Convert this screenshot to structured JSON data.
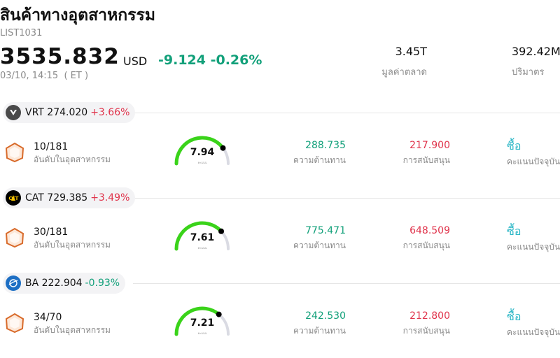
{
  "header": {
    "title": "สินค้าทางอุตสาหกรรม",
    "code": "LIST1031",
    "price": "3535.832",
    "currency": "USD",
    "change": "-9.124",
    "change_pct": "-0.26%",
    "time": "03/10, 14:15  ( ET )",
    "market_cap_value": "3.45T",
    "market_cap_label": "มูลค่าตลาด",
    "volume_value": "392.42M",
    "volume_label": "ปริมาตร"
  },
  "colors": {
    "up": "#e0334b",
    "down": "#12a07a",
    "buy": "#2fb8c7",
    "gauge": "#3ad31a"
  },
  "stocks": [
    {
      "ticker": "VRT",
      "price": "274.020",
      "pct": "+3.66%",
      "direction": "up",
      "logo": "vertiv-logo-icon",
      "rank": "10/181",
      "rank_label": "อันดับในอุตสาหกรรม",
      "score": "7.94",
      "score_value": 7.94,
      "score_label": "คะแนน",
      "resistance": "288.735",
      "resistance_label": "ความต้านทาน",
      "support": "217.900",
      "support_label": "การสนับสนุน",
      "rating": "ซื้อ",
      "rating_label": "คะแนนปัจจุบัน"
    },
    {
      "ticker": "CAT",
      "price": "729.385",
      "pct": "+3.49%",
      "direction": "up",
      "logo": "cat-logo-icon",
      "rank": "30/181",
      "rank_label": "อันดับในอุตสาหกรรม",
      "score": "7.61",
      "score_value": 7.61,
      "score_label": "คะแนน",
      "resistance": "775.471",
      "resistance_label": "ความต้านทาน",
      "support": "648.509",
      "support_label": "การสนับสนุน",
      "rating": "ซื้อ",
      "rating_label": "คะแนนปัจจุบัน"
    },
    {
      "ticker": "BA",
      "price": "222.904",
      "pct": "-0.93%",
      "direction": "down",
      "logo": "boeing-logo-icon",
      "rank": "34/70",
      "rank_label": "อันดับในอุตสาหกรรม",
      "score": "7.21",
      "score_value": 7.21,
      "score_label": "คะแนน",
      "resistance": "242.530",
      "resistance_label": "ความต้านทาน",
      "support": "212.800",
      "support_label": "การสนับสนุน",
      "rating": "ซื้อ",
      "rating_label": "คะแนนปัจจุบัน"
    }
  ]
}
